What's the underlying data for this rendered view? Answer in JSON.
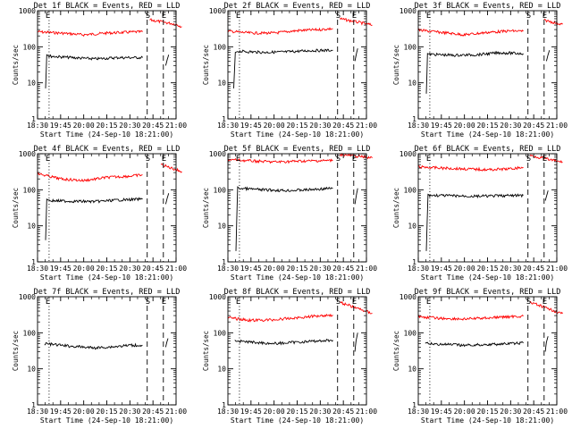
{
  "chart_data": {
    "type": "line",
    "layout": {
      "rows": 3,
      "cols": 3
    },
    "y_scale": "log",
    "ylim": [
      1,
      1000
    ],
    "y_ticks": [
      1,
      10,
      100,
      1000
    ],
    "y_tick_labels": [
      "1",
      "10",
      "100",
      "1000"
    ],
    "x_ticks": [
      "18:30",
      "19:45",
      "20:00",
      "20:15",
      "20:30",
      "20:45",
      "21:00"
    ],
    "xlabel": "Start Time (24-Sep-10 18:21:00)",
    "ylabel": "Counts/sec",
    "colors": {
      "events": "#000000",
      "lld": "#ff0000",
      "axes": "#000000"
    },
    "event_markers": [
      {
        "label": "E",
        "position": 0.5,
        "style": "dotted"
      },
      {
        "label": "S",
        "position": 4.75,
        "style": "dashed"
      },
      {
        "label": "E",
        "position": 5.45,
        "style": "dashed"
      }
    ],
    "panels": [
      {
        "title": "Det 1f BLACK = Events, RED = LLD",
        "lld": [
          [
            [
              0,
              260
            ],
            [
              1,
              240
            ],
            [
              2,
              215
            ],
            [
              3,
              240
            ],
            [
              4,
              255
            ],
            [
              4.55,
              260
            ]
          ],
          [
            [
              4.85,
              560
            ],
            [
              6,
              420
            ],
            [
              6.25,
              360
            ]
          ]
        ],
        "events": [
          [
            [
              0.35,
              7
            ],
            [
              0.4,
              60
            ],
            [
              0.5,
              55
            ],
            [
              1.5,
              50
            ],
            [
              2.5,
              46
            ],
            [
              3.5,
              50
            ],
            [
              4.55,
              50
            ]
          ],
          [
            [
              5.55,
              30
            ],
            [
              5.62,
              45
            ],
            [
              5.68,
              60
            ]
          ]
        ]
      },
      {
        "title": "Det 2f BLACK = Events, RED = LLD",
        "lld": [
          [
            [
              0,
              270
            ],
            [
              1,
              240
            ],
            [
              2,
              240
            ],
            [
              3,
              280
            ],
            [
              4,
              300
            ],
            [
              4.55,
              320
            ]
          ],
          [
            [
              4.85,
              600
            ],
            [
              6,
              430
            ],
            [
              6.25,
              400
            ]
          ]
        ],
        "events": [
          [
            [
              0.25,
              7
            ],
            [
              0.32,
              70
            ],
            [
              0.45,
              75
            ],
            [
              1.5,
              70
            ],
            [
              2.5,
              72
            ],
            [
              3.5,
              78
            ],
            [
              4.55,
              80
            ]
          ],
          [
            [
              5.5,
              40
            ],
            [
              5.58,
              70
            ],
            [
              5.62,
              90
            ]
          ]
        ]
      },
      {
        "title": "Det 3f BLACK = Events, RED = LLD",
        "lld": [
          [
            [
              0,
              290
            ],
            [
              1,
              250
            ],
            [
              2,
              215
            ],
            [
              3,
              250
            ],
            [
              4,
              275
            ],
            [
              4.55,
              270
            ]
          ],
          [
            [
              5.45,
              550
            ],
            [
              6,
              450
            ],
            [
              6.25,
              420
            ]
          ]
        ],
        "events": [
          [
            [
              0.35,
              5
            ],
            [
              0.4,
              65
            ],
            [
              0.5,
              62
            ],
            [
              1.5,
              58
            ],
            [
              2.5,
              60
            ],
            [
              3.5,
              68
            ],
            [
              4.55,
              65
            ]
          ],
          [
            [
              5.55,
              40
            ],
            [
              5.62,
              60
            ],
            [
              5.68,
              80
            ]
          ]
        ]
      },
      {
        "title": "Det 4f BLACK = Events, RED = LLD",
        "lld": [
          [
            [
              0,
              280
            ],
            [
              1,
              200
            ],
            [
              2,
              180
            ],
            [
              3,
              220
            ],
            [
              4,
              240
            ],
            [
              4.55,
              260
            ]
          ],
          [
            [
              5.35,
              500
            ],
            [
              6,
              360
            ],
            [
              6.25,
              320
            ]
          ]
        ],
        "events": [
          [
            [
              0.35,
              4
            ],
            [
              0.4,
              55
            ],
            [
              0.5,
              50
            ],
            [
              1.5,
              48
            ],
            [
              2.5,
              47
            ],
            [
              3.5,
              52
            ],
            [
              4.55,
              55
            ]
          ],
          [
            [
              5.55,
              40
            ],
            [
              5.62,
              60
            ],
            [
              5.68,
              80
            ]
          ]
        ]
      },
      {
        "title": "Det 5f BLACK = Events, RED = LLD",
        "lld": [
          [
            [
              0,
              690
            ],
            [
              1,
              630
            ],
            [
              2,
              590
            ],
            [
              3,
              620
            ],
            [
              4,
              640
            ],
            [
              4.55,
              650
            ]
          ],
          [
            [
              4.85,
              950
            ],
            [
              6,
              800
            ],
            [
              6.25,
              760
            ]
          ]
        ],
        "events": [
          [
            [
              0.35,
              2
            ],
            [
              0.42,
              120
            ],
            [
              0.5,
              110
            ],
            [
              1.5,
              100
            ],
            [
              2.5,
              95
            ],
            [
              3.5,
              100
            ],
            [
              4.55,
              110
            ]
          ],
          [
            [
              5.5,
              40
            ],
            [
              5.58,
              80
            ],
            [
              5.62,
              110
            ]
          ]
        ]
      },
      {
        "title": "Det 6f BLACK = Events, RED = LLD",
        "lld": [
          [
            [
              0,
              430
            ],
            [
              1,
              400
            ],
            [
              2,
              380
            ],
            [
              3,
              360
            ],
            [
              4,
              380
            ],
            [
              4.55,
              420
            ]
          ],
          [
            [
              4.85,
              900
            ],
            [
              6,
              620
            ],
            [
              6.25,
              580
            ]
          ]
        ],
        "events": [
          [
            [
              0.35,
              2
            ],
            [
              0.42,
              75
            ],
            [
              0.5,
              70
            ],
            [
              1.5,
              68
            ],
            [
              2.5,
              66
            ],
            [
              3.5,
              68
            ],
            [
              4.55,
              70
            ]
          ],
          [
            [
              5.5,
              50
            ],
            [
              5.58,
              75
            ],
            [
              5.62,
              95
            ]
          ]
        ]
      },
      {
        "title": "Det 7f BLACK = Events, RED = LLD",
        "lld": [],
        "events": [
          [
            [
              0.3,
              50
            ],
            [
              1,
              45
            ],
            [
              1.5,
              42
            ],
            [
              2,
              40
            ],
            [
              2.5,
              38
            ],
            [
              3,
              40
            ],
            [
              3.5,
              42
            ],
            [
              4,
              45
            ],
            [
              4.55,
              45
            ]
          ],
          [
            [
              5.55,
              40
            ],
            [
              5.6,
              55
            ],
            [
              5.65,
              70
            ]
          ]
        ]
      },
      {
        "title": "Det 8f BLACK = Events, RED = LLD",
        "lld": [
          [
            [
              0,
              260
            ],
            [
              1,
              220
            ],
            [
              2,
              230
            ],
            [
              3,
              260
            ],
            [
              4,
              300
            ],
            [
              4.55,
              310
            ]
          ],
          [
            [
              4.85,
              700
            ],
            [
              6,
              390
            ],
            [
              6.25,
              350
            ]
          ]
        ],
        "events": [
          [
            [
              0.3,
              60
            ],
            [
              1,
              55
            ],
            [
              2,
              50
            ],
            [
              3,
              55
            ],
            [
              4,
              60
            ],
            [
              4.55,
              62
            ]
          ],
          [
            [
              5.5,
              30
            ],
            [
              5.55,
              60
            ],
            [
              5.62,
              100
            ]
          ]
        ]
      },
      {
        "title": "Det 9f BLACK = Events, RED = LLD",
        "lld": [
          [
            [
              0,
              280
            ],
            [
              1,
              250
            ],
            [
              2,
              240
            ],
            [
              3,
              260
            ],
            [
              4,
              280
            ],
            [
              4.55,
              290
            ]
          ],
          [
            [
              4.85,
              700
            ],
            [
              6,
              380
            ],
            [
              6.25,
              340
            ]
          ]
        ],
        "events": [
          [
            [
              0.3,
              50
            ],
            [
              1,
              48
            ],
            [
              2,
              45
            ],
            [
              3,
              47
            ],
            [
              4,
              50
            ],
            [
              4.55,
              52
            ]
          ],
          [
            [
              5.5,
              30
            ],
            [
              5.55,
              55
            ],
            [
              5.62,
              80
            ]
          ]
        ]
      }
    ]
  }
}
